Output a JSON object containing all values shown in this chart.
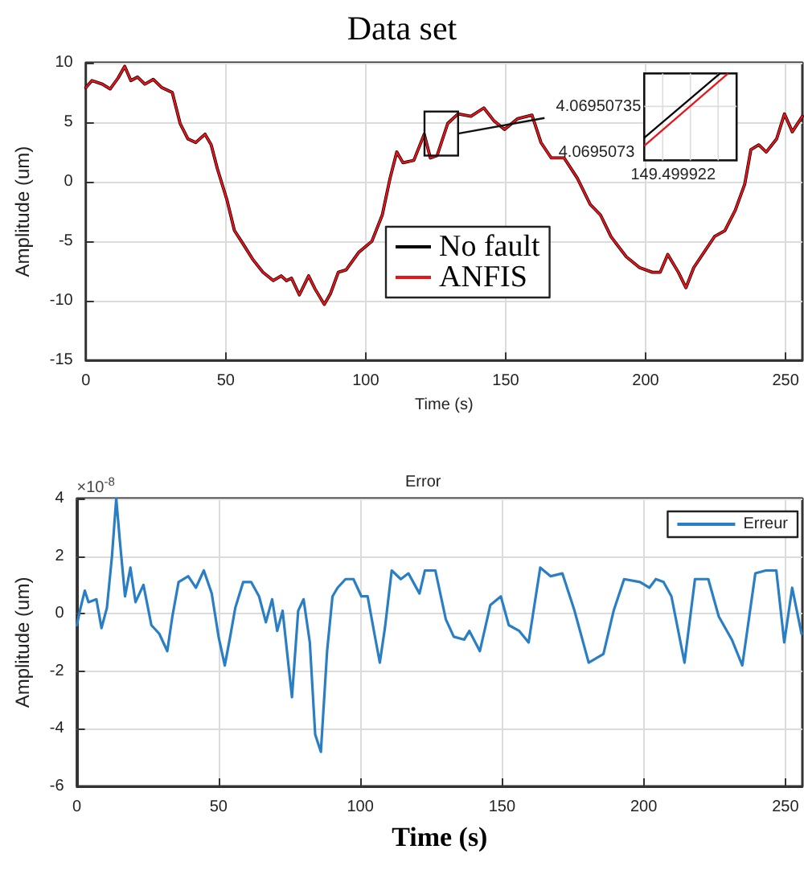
{
  "chart_data": [
    {
      "type": "line",
      "title": "Data set",
      "xlabel": "Time (s)",
      "ylabel": "Amplitude (um)",
      "x": [
        0,
        2.2,
        5.9,
        8.7,
        11.5,
        13.9,
        16.1,
        18.5,
        21.1,
        24.1,
        27.2,
        30.9,
        33.7,
        36.5,
        39.3,
        42.6,
        44.8,
        47.0,
        50.4,
        53.1,
        55.6,
        59.6,
        63.3,
        67.0,
        69.8,
        71.7,
        73.5,
        76.3,
        79.6,
        81.9,
        85.2,
        87.4,
        90.2,
        93.0,
        97.6,
        102.2,
        105.9,
        108.7,
        111.1,
        113.3,
        117.2,
        120.9,
        123.1,
        125.5,
        129.3,
        133.0,
        137.6,
        142.2,
        145.9,
        149.6,
        154.3,
        159.4,
        162.6,
        166.3,
        170.9,
        175.6,
        180.2,
        183.9,
        187.6,
        193.1,
        197.8,
        202.4,
        205.2,
        207.9,
        211.7,
        214.4,
        217.2,
        220.9,
        224.6,
        228.3,
        232.0,
        235.4,
        237.6,
        240.4,
        243.1,
        246.8,
        249.6,
        252.4,
        256.0
      ],
      "series": [
        {
          "name": "No fault",
          "color": "#000000",
          "values": [
            7.9,
            8.5,
            8.2,
            7.8,
            8.7,
            9.7,
            8.5,
            8.8,
            8.2,
            8.6,
            7.9,
            7.5,
            4.9,
            3.6,
            3.3,
            4.0,
            3.1,
            1.1,
            -1.5,
            -4.1,
            -5.0,
            -6.5,
            -7.6,
            -8.3,
            -7.9,
            -8.3,
            -8.1,
            -9.5,
            -7.9,
            -9.0,
            -10.3,
            -9.4,
            -7.6,
            -7.4,
            -5.9,
            -5.0,
            -2.8,
            0.3,
            2.5,
            1.6,
            1.8,
            4.0,
            2.0,
            2.2,
            4.9,
            5.7,
            5.5,
            6.2,
            5.1,
            4.4,
            5.3,
            5.6,
            3.3,
            2.0,
            2.0,
            0.3,
            -1.9,
            -2.8,
            -4.6,
            -6.3,
            -7.2,
            -7.6,
            -7.6,
            -6.1,
            -7.6,
            -8.9,
            -7.2,
            -5.9,
            -4.6,
            -4.1,
            -2.4,
            -0.2,
            2.7,
            3.1,
            2.5,
            3.6,
            5.7,
            4.2,
            5.5
          ]
        },
        {
          "name": "ANFIS",
          "color": "#e8141a",
          "values": [
            7.9,
            8.5,
            8.2,
            7.8,
            8.7,
            9.7,
            8.5,
            8.8,
            8.2,
            8.6,
            7.9,
            7.5,
            4.9,
            3.6,
            3.3,
            4.0,
            3.1,
            1.1,
            -1.5,
            -4.1,
            -5.0,
            -6.5,
            -7.6,
            -8.3,
            -7.9,
            -8.3,
            -8.1,
            -9.5,
            -7.9,
            -9.0,
            -10.3,
            -9.4,
            -7.6,
            -7.4,
            -5.9,
            -5.0,
            -2.8,
            0.3,
            2.5,
            1.6,
            1.8,
            4.0,
            2.0,
            2.2,
            4.9,
            5.7,
            5.5,
            6.2,
            5.1,
            4.4,
            5.3,
            5.6,
            3.3,
            2.0,
            2.0,
            0.3,
            -1.9,
            -2.8,
            -4.6,
            -6.3,
            -7.2,
            -7.6,
            -7.6,
            -6.1,
            -7.6,
            -8.9,
            -7.2,
            -5.9,
            -4.6,
            -4.1,
            -2.4,
            -0.2,
            2.7,
            3.1,
            2.5,
            3.6,
            5.7,
            4.2,
            5.5
          ]
        }
      ],
      "xlim": [
        0,
        256
      ],
      "xticks": [
        0,
        50,
        100,
        150,
        200,
        250
      ],
      "ylim": [
        -15,
        10
      ],
      "yticks": [
        -15,
        -10,
        -5,
        0,
        5,
        10
      ],
      "grid": true,
      "legend": "bottom",
      "marker": "none",
      "line_style": "solid",
      "annotations": [
        "4.06950735",
        "4.0695073",
        "149.499922"
      ]
    },
    {
      "type": "line",
      "title": "Error",
      "xlabel": "Time (s)",
      "ylabel": "Amplitude (um)",
      "x": [
        0,
        1.3,
        2.8,
        4.1,
        6.9,
        8.7,
        10.6,
        12.4,
        13.9,
        15.2,
        17.0,
        18.9,
        20.7,
        23.5,
        26.3,
        29.1,
        31.9,
        33.7,
        35.9,
        39.3,
        42.0,
        44.8,
        47.6,
        50.0,
        52.2,
        54.1,
        55.9,
        58.7,
        61.5,
        64.3,
        66.7,
        68.9,
        70.7,
        72.6,
        75.9,
        78.1,
        80.0,
        82.2,
        84.1,
        86.1,
        88.3,
        90.2,
        92.0,
        94.8,
        97.6,
        100.4,
        102.6,
        105.0,
        106.9,
        108.7,
        111.1,
        114.3,
        117.0,
        120.9,
        122.8,
        126.5,
        130.2,
        133.0,
        136.7,
        138.5,
        142.2,
        145.9,
        149.6,
        152.4,
        156.1,
        159.4,
        163.5,
        167.2,
        171.3,
        175.6,
        180.6,
        185.8,
        189.4,
        193.1,
        198.7,
        202.0,
        204.3,
        207.0,
        209.8,
        214.4,
        218.1,
        222.8,
        226.5,
        231.1,
        234.8,
        239.4,
        243.1,
        246.8,
        249.6,
        252.4,
        255.7
      ],
      "series": [
        {
          "name": "Erreur",
          "color": "#2a7fc4",
          "values": [
            -0.4,
            0.2,
            0.8,
            0.4,
            0.5,
            -0.5,
            0.2,
            2.0,
            4.0,
            2.5,
            0.6,
            1.6,
            0.4,
            1.0,
            -0.4,
            -0.7,
            -1.3,
            -0.1,
            1.1,
            1.3,
            0.9,
            1.5,
            0.7,
            -0.8,
            -1.8,
            -0.8,
            0.2,
            1.1,
            1.1,
            0.6,
            -0.3,
            0.5,
            -0.6,
            0.1,
            -2.9,
            0.1,
            0.5,
            -1.0,
            -4.2,
            -4.8,
            -1.3,
            0.6,
            0.9,
            1.2,
            1.2,
            0.6,
            0.6,
            -0.7,
            -1.7,
            -0.5,
            1.5,
            1.2,
            1.4,
            0.7,
            1.5,
            1.5,
            -0.2,
            -0.8,
            -0.9,
            -0.6,
            -1.3,
            0.3,
            0.6,
            -0.4,
            -0.6,
            -1.0,
            1.6,
            1.3,
            1.4,
            0.1,
            -1.7,
            -1.4,
            0.1,
            1.2,
            1.1,
            0.9,
            1.2,
            1.1,
            0.6,
            -1.7,
            1.2,
            1.2,
            -0.1,
            -0.9,
            -1.8,
            1.4,
            1.5,
            1.5,
            -1.0,
            0.9,
            -0.7
          ]
        }
      ],
      "xlim": [
        0,
        256
      ],
      "xticks": [
        0,
        50,
        100,
        150,
        200,
        250
      ],
      "ylim": [
        -6,
        4
      ],
      "yticks": [
        -6,
        -4,
        -2,
        0,
        2,
        4
      ],
      "grid": true,
      "legend": "top right",
      "marker": "none",
      "line_style": "solid",
      "annotations": [
        "×10$^{-8}$"
      ]
    }
  ]
}
